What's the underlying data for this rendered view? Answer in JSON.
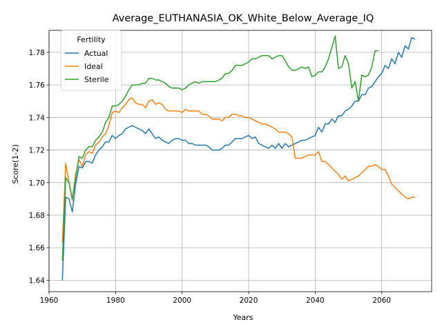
{
  "chart_data": {
    "type": "line",
    "title": "Average_EUTHANASIA_OK_White_Below_Average_IQ",
    "xlabel": "Years",
    "ylabel": "Score(1-2)",
    "xlim": [
      1960,
      2075
    ],
    "ylim": [
      1.633,
      1.7935
    ],
    "xticks": [
      1960,
      1980,
      2000,
      2020,
      2040,
      2060
    ],
    "yticks": [
      1.64,
      1.66,
      1.68,
      1.7,
      1.72,
      1.74,
      1.76,
      1.78
    ],
    "yticklabels": [
      "1.64",
      "1.66",
      "1.68",
      "1.70",
      "1.72",
      "1.74",
      "1.76",
      "1.78"
    ],
    "grid": true,
    "legend": {
      "title": "Fertility",
      "placement": "top-left"
    },
    "series": [
      {
        "name": "Actual",
        "color": "#1f77b4",
        "points": [
          [
            1964,
            1.64
          ],
          [
            1965,
            1.691
          ],
          [
            1966,
            1.69
          ],
          [
            1967,
            1.682
          ],
          [
            1968,
            1.699
          ],
          [
            1969,
            1.71
          ],
          [
            1970,
            1.709
          ],
          [
            1971,
            1.713
          ],
          [
            1972,
            1.713
          ],
          [
            1973,
            1.712
          ],
          [
            1974,
            1.717
          ],
          [
            1975,
            1.72
          ],
          [
            1976,
            1.722
          ],
          [
            1977,
            1.725
          ],
          [
            1978,
            1.725
          ],
          [
            1979,
            1.729
          ],
          [
            1980,
            1.727
          ],
          [
            1981,
            1.729
          ],
          [
            1982,
            1.73
          ],
          [
            1983,
            1.733
          ],
          [
            1984,
            1.734
          ],
          [
            1985,
            1.735
          ],
          [
            1986,
            1.734
          ],
          [
            1987,
            1.733
          ],
          [
            1988,
            1.732
          ],
          [
            1989,
            1.73
          ],
          [
            1990,
            1.733
          ],
          [
            1991,
            1.73
          ],
          [
            1992,
            1.727
          ],
          [
            1993,
            1.728
          ],
          [
            1994,
            1.726
          ],
          [
            1995,
            1.725
          ],
          [
            1996,
            1.724
          ],
          [
            1997,
            1.726
          ],
          [
            1998,
            1.727
          ],
          [
            1999,
            1.727
          ],
          [
            2000,
            1.726
          ],
          [
            2001,
            1.726
          ],
          [
            2002,
            1.724
          ],
          [
            2003,
            1.724
          ],
          [
            2004,
            1.723
          ],
          [
            2005,
            1.723
          ],
          [
            2006,
            1.723
          ],
          [
            2007,
            1.723
          ],
          [
            2008,
            1.722
          ],
          [
            2009,
            1.72
          ],
          [
            2010,
            1.72
          ],
          [
            2011,
            1.72
          ],
          [
            2012,
            1.721
          ],
          [
            2013,
            1.723
          ],
          [
            2014,
            1.723
          ],
          [
            2015,
            1.725
          ],
          [
            2016,
            1.727
          ],
          [
            2017,
            1.727
          ],
          [
            2018,
            1.727
          ],
          [
            2019,
            1.728
          ],
          [
            2020,
            1.729
          ],
          [
            2021,
            1.727
          ],
          [
            2022,
            1.728
          ],
          [
            2023,
            1.724
          ],
          [
            2024,
            1.723
          ],
          [
            2025,
            1.722
          ],
          [
            2026,
            1.721
          ],
          [
            2027,
            1.723
          ],
          [
            2028,
            1.721
          ],
          [
            2029,
            1.724
          ],
          [
            2030,
            1.721
          ],
          [
            2031,
            1.724
          ],
          [
            2032,
            1.722
          ],
          [
            2033,
            1.723
          ],
          [
            2034,
            1.724
          ],
          [
            2035,
            1.725
          ],
          [
            2036,
            1.726
          ],
          [
            2037,
            1.726
          ],
          [
            2038,
            1.727
          ],
          [
            2039,
            1.728
          ],
          [
            2040,
            1.729
          ],
          [
            2041,
            1.734
          ],
          [
            2042,
            1.731
          ],
          [
            2043,
            1.736
          ],
          [
            2044,
            1.736
          ],
          [
            2045,
            1.739
          ],
          [
            2046,
            1.737
          ],
          [
            2047,
            1.741
          ],
          [
            2048,
            1.741
          ],
          [
            2049,
            1.744
          ],
          [
            2050,
            1.745
          ],
          [
            2051,
            1.747
          ],
          [
            2052,
            1.75
          ],
          [
            2053,
            1.75
          ],
          [
            2054,
            1.754
          ],
          [
            2055,
            1.754
          ],
          [
            2056,
            1.758
          ],
          [
            2057,
            1.759
          ],
          [
            2058,
            1.762
          ],
          [
            2059,
            1.765
          ],
          [
            2060,
            1.767
          ],
          [
            2061,
            1.772
          ],
          [
            2062,
            1.77
          ],
          [
            2063,
            1.776
          ],
          [
            2064,
            1.773
          ],
          [
            2065,
            1.78
          ],
          [
            2066,
            1.777
          ],
          [
            2067,
            1.784
          ],
          [
            2068,
            1.782
          ],
          [
            2069,
            1.789
          ],
          [
            2070,
            1.788
          ]
        ]
      },
      {
        "name": "Ideal",
        "color": "#ff7f0e",
        "points": [
          [
            1964,
            1.663
          ],
          [
            1965,
            1.712
          ],
          [
            1966,
            1.7
          ],
          [
            1967,
            1.689
          ],
          [
            1968,
            1.705
          ],
          [
            1969,
            1.714
          ],
          [
            1970,
            1.71
          ],
          [
            1971,
            1.717
          ],
          [
            1972,
            1.719
          ],
          [
            1973,
            1.718
          ],
          [
            1974,
            1.723
          ],
          [
            1975,
            1.725
          ],
          [
            1976,
            1.728
          ],
          [
            1977,
            1.73
          ],
          [
            1978,
            1.735
          ],
          [
            1979,
            1.743
          ],
          [
            1980,
            1.744
          ],
          [
            1981,
            1.743
          ],
          [
            1982,
            1.746
          ],
          [
            1983,
            1.748
          ],
          [
            1984,
            1.751
          ],
          [
            1985,
            1.752
          ],
          [
            1986,
            1.749
          ],
          [
            1987,
            1.748
          ],
          [
            1988,
            1.748
          ],
          [
            1989,
            1.746
          ],
          [
            1990,
            1.75
          ],
          [
            1991,
            1.751
          ],
          [
            1992,
            1.748
          ],
          [
            1993,
            1.749
          ],
          [
            1994,
            1.748
          ],
          [
            1995,
            1.745
          ],
          [
            1996,
            1.744
          ],
          [
            1997,
            1.744
          ],
          [
            1998,
            1.744
          ],
          [
            1999,
            1.744
          ],
          [
            2000,
            1.743
          ],
          [
            2001,
            1.745
          ],
          [
            2002,
            1.744
          ],
          [
            2003,
            1.744
          ],
          [
            2004,
            1.744
          ],
          [
            2005,
            1.744
          ],
          [
            2006,
            1.742
          ],
          [
            2007,
            1.742
          ],
          [
            2008,
            1.741
          ],
          [
            2009,
            1.739
          ],
          [
            2010,
            1.739
          ],
          [
            2011,
            1.739
          ],
          [
            2012,
            1.738
          ],
          [
            2013,
            1.74
          ],
          [
            2014,
            1.74
          ],
          [
            2015,
            1.742
          ],
          [
            2016,
            1.742
          ],
          [
            2017,
            1.741
          ],
          [
            2018,
            1.741
          ],
          [
            2019,
            1.74
          ],
          [
            2020,
            1.74
          ],
          [
            2021,
            1.739
          ],
          [
            2022,
            1.738
          ],
          [
            2023,
            1.737
          ],
          [
            2024,
            1.736
          ],
          [
            2025,
            1.736
          ],
          [
            2026,
            1.735
          ],
          [
            2027,
            1.734
          ],
          [
            2028,
            1.733
          ],
          [
            2029,
            1.731
          ],
          [
            2030,
            1.731
          ],
          [
            2031,
            1.731
          ],
          [
            2032,
            1.73
          ],
          [
            2033,
            1.728
          ],
          [
            2034,
            1.715
          ],
          [
            2035,
            1.715
          ],
          [
            2036,
            1.715
          ],
          [
            2037,
            1.716
          ],
          [
            2038,
            1.717
          ],
          [
            2039,
            1.717
          ],
          [
            2040,
            1.717
          ],
          [
            2041,
            1.719
          ],
          [
            2042,
            1.713
          ],
          [
            2043,
            1.713
          ],
          [
            2044,
            1.711
          ],
          [
            2045,
            1.709
          ],
          [
            2046,
            1.707
          ],
          [
            2047,
            1.705
          ],
          [
            2048,
            1.702
          ],
          [
            2049,
            1.704
          ],
          [
            2050,
            1.701
          ],
          [
            2051,
            1.702
          ],
          [
            2052,
            1.703
          ],
          [
            2053,
            1.704
          ],
          [
            2054,
            1.706
          ],
          [
            2055,
            1.708
          ],
          [
            2056,
            1.71
          ],
          [
            2057,
            1.71
          ],
          [
            2058,
            1.711
          ],
          [
            2059,
            1.71
          ],
          [
            2060,
            1.708
          ],
          [
            2061,
            1.708
          ],
          [
            2062,
            1.704
          ],
          [
            2063,
            1.699
          ],
          [
            2064,
            1.697
          ],
          [
            2065,
            1.695
          ],
          [
            2066,
            1.693
          ],
          [
            2067,
            1.691
          ],
          [
            2068,
            1.69
          ],
          [
            2069,
            1.691
          ],
          [
            2070,
            1.691
          ]
        ]
      },
      {
        "name": "Sterile",
        "color": "#2ca02c",
        "points": [
          [
            1964,
            1.652
          ],
          [
            1965,
            1.703
          ],
          [
            1966,
            1.7
          ],
          [
            1967,
            1.69
          ],
          [
            1968,
            1.703
          ],
          [
            1969,
            1.716
          ],
          [
            1970,
            1.715
          ],
          [
            1971,
            1.72
          ],
          [
            1972,
            1.722
          ],
          [
            1973,
            1.722
          ],
          [
            1974,
            1.726
          ],
          [
            1975,
            1.728
          ],
          [
            1976,
            1.731
          ],
          [
            1977,
            1.737
          ],
          [
            1978,
            1.74
          ],
          [
            1979,
            1.747
          ],
          [
            1980,
            1.747
          ],
          [
            1981,
            1.748
          ],
          [
            1982,
            1.75
          ],
          [
            1983,
            1.753
          ],
          [
            1984,
            1.757
          ],
          [
            1985,
            1.76
          ],
          [
            1986,
            1.76
          ],
          [
            1987,
            1.76
          ],
          [
            1988,
            1.761
          ],
          [
            1989,
            1.761
          ],
          [
            1990,
            1.764
          ],
          [
            1991,
            1.764
          ],
          [
            1992,
            1.763
          ],
          [
            1993,
            1.763
          ],
          [
            1994,
            1.762
          ],
          [
            1995,
            1.761
          ],
          [
            1996,
            1.759
          ],
          [
            1997,
            1.758
          ],
          [
            1998,
            1.758
          ],
          [
            1999,
            1.758
          ],
          [
            2000,
            1.757
          ],
          [
            2001,
            1.758
          ],
          [
            2002,
            1.76
          ],
          [
            2003,
            1.761
          ],
          [
            2004,
            1.762
          ],
          [
            2005,
            1.761
          ],
          [
            2006,
            1.762
          ],
          [
            2007,
            1.762
          ],
          [
            2008,
            1.762
          ],
          [
            2009,
            1.762
          ],
          [
            2010,
            1.762
          ],
          [
            2011,
            1.763
          ],
          [
            2012,
            1.764
          ],
          [
            2013,
            1.767
          ],
          [
            2014,
            1.767
          ],
          [
            2015,
            1.769
          ],
          [
            2016,
            1.772
          ],
          [
            2017,
            1.772
          ],
          [
            2018,
            1.772
          ],
          [
            2019,
            1.773
          ],
          [
            2020,
            1.774
          ],
          [
            2021,
            1.776
          ],
          [
            2022,
            1.776
          ],
          [
            2023,
            1.777
          ],
          [
            2024,
            1.778
          ],
          [
            2025,
            1.778
          ],
          [
            2026,
            1.778
          ],
          [
            2027,
            1.776
          ],
          [
            2028,
            1.777
          ],
          [
            2029,
            1.778
          ],
          [
            2030,
            1.778
          ],
          [
            2031,
            1.775
          ],
          [
            2032,
            1.771
          ],
          [
            2033,
            1.769
          ],
          [
            2034,
            1.769
          ],
          [
            2035,
            1.77
          ],
          [
            2036,
            1.771
          ],
          [
            2037,
            1.77
          ],
          [
            2038,
            1.771
          ],
          [
            2039,
            1.765
          ],
          [
            2040,
            1.766
          ],
          [
            2041,
            1.768
          ],
          [
            2042,
            1.768
          ],
          [
            2043,
            1.771
          ],
          [
            2044,
            1.776
          ],
          [
            2045,
            1.783
          ],
          [
            2046,
            1.79
          ],
          [
            2047,
            1.77
          ],
          [
            2048,
            1.771
          ],
          [
            2049,
            1.778
          ],
          [
            2050,
            1.773
          ],
          [
            2051,
            1.758
          ],
          [
            2052,
            1.762
          ],
          [
            2053,
            1.75
          ],
          [
            2054,
            1.766
          ],
          [
            2055,
            1.765
          ],
          [
            2056,
            1.766
          ],
          [
            2057,
            1.771
          ],
          [
            2058,
            1.781
          ],
          [
            2059,
            1.781
          ]
        ]
      }
    ]
  }
}
